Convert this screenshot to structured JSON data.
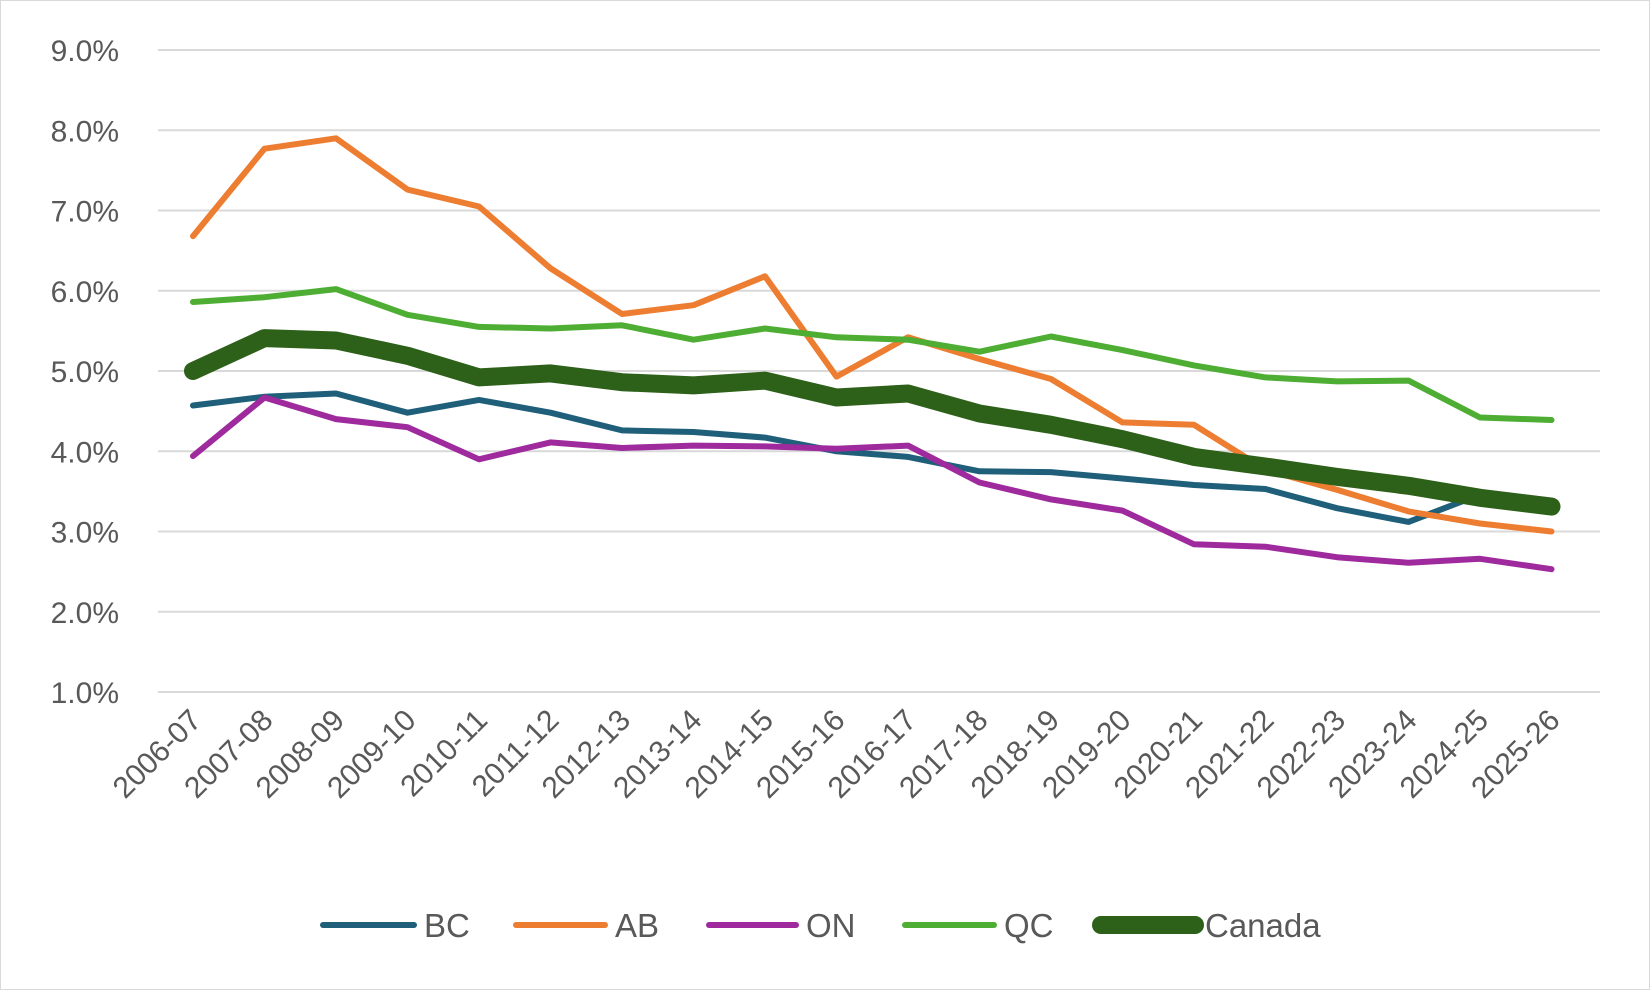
{
  "chart_data": {
    "type": "line",
    "title": "",
    "xlabel": "",
    "ylabel": "",
    "ylim": [
      1.0,
      9.0
    ],
    "y_ticks": [
      "1.0%",
      "2.0%",
      "3.0%",
      "4.0%",
      "5.0%",
      "6.0%",
      "7.0%",
      "8.0%",
      "9.0%"
    ],
    "y_tick_values": [
      1,
      2,
      3,
      4,
      5,
      6,
      7,
      8,
      9
    ],
    "grid": "horizontal",
    "legend_position": "bottom",
    "categories": [
      "2006-07",
      "2007-08",
      "2008-09",
      "2009-10",
      "2010-11",
      "2011-12",
      "2012-13",
      "2013-14",
      "2014-15",
      "2015-16",
      "2016-17",
      "2017-18",
      "2018-19",
      "2019-20",
      "2020-21",
      "2021-22",
      "2022-23",
      "2023-24",
      "2024-25",
      "2025-26"
    ],
    "series": [
      {
        "name": "BC",
        "color": "#1F5F7A",
        "values": [
          4.57,
          4.68,
          4.72,
          4.48,
          4.64,
          4.48,
          4.26,
          4.24,
          4.17,
          4.0,
          3.93,
          3.75,
          3.74,
          3.66,
          3.58,
          3.53,
          3.29,
          3.12,
          3.46,
          3.38
        ]
      },
      {
        "name": "AB",
        "color": "#ED7D31",
        "values": [
          6.68,
          7.77,
          7.9,
          7.26,
          7.05,
          6.28,
          5.71,
          5.82,
          6.18,
          4.93,
          5.42,
          5.15,
          4.9,
          4.36,
          4.33,
          3.77,
          3.52,
          3.25,
          3.1,
          3.0
        ]
      },
      {
        "name": "ON",
        "color": "#9E2A9E",
        "values": [
          3.94,
          4.67,
          4.4,
          4.3,
          3.9,
          4.11,
          4.04,
          4.07,
          4.06,
          4.03,
          4.07,
          3.61,
          3.4,
          3.26,
          2.84,
          2.81,
          2.68,
          2.61,
          2.66,
          2.53
        ]
      },
      {
        "name": "QC",
        "color": "#4EAE33",
        "values": [
          5.86,
          5.92,
          6.02,
          5.7,
          5.55,
          5.53,
          5.57,
          5.39,
          5.53,
          5.42,
          5.39,
          5.24,
          5.43,
          5.26,
          5.07,
          4.92,
          4.87,
          4.88,
          4.42,
          4.39
        ]
      },
      {
        "name": "Canada",
        "color": "#2D6019",
        "values": [
          5.0,
          5.41,
          5.38,
          5.19,
          4.92,
          4.97,
          4.86,
          4.82,
          4.88,
          4.67,
          4.72,
          4.47,
          4.33,
          4.15,
          3.93,
          3.81,
          3.68,
          3.57,
          3.42,
          3.31
        ]
      }
    ]
  }
}
